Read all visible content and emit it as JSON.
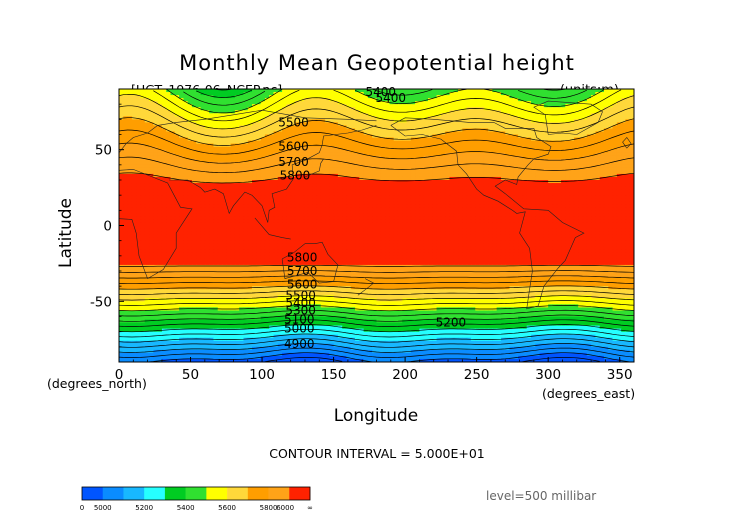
{
  "chart_data": {
    "type": "contour",
    "title": "Monthly Mean Geopotential height",
    "file_label": "[HGT_1976-06_NCEP.nc]",
    "units_label": "(units:m)",
    "xlabel": "Longitude",
    "ylabel": "Latitude",
    "x_units": "(degrees_east)",
    "y_units": "(degrees_north)",
    "xlim": [
      0,
      360
    ],
    "ylim": [
      -90,
      90
    ],
    "x_ticks": [
      0,
      50,
      100,
      150,
      200,
      250,
      300,
      350
    ],
    "y_ticks": [
      50,
      0,
      -50
    ],
    "contour_interval_text": "CONTOUR INTERVAL = 5.000E+01",
    "level_text": "level=500 millibar",
    "contour_labels": [
      {
        "text": "5400",
        "x": 183,
        "y": 88
      },
      {
        "text": "5400",
        "x": 190,
        "y": 84
      },
      {
        "text": "5500",
        "x": 122,
        "y": 68
      },
      {
        "text": "5600",
        "x": 122,
        "y": 52
      },
      {
        "text": "5700",
        "x": 122,
        "y": 42
      },
      {
        "text": "5800",
        "x": 123,
        "y": 33
      },
      {
        "text": "5800",
        "x": 128,
        "y": -21
      },
      {
        "text": "5700",
        "x": 128,
        "y": -30
      },
      {
        "text": "5600",
        "x": 128,
        "y": -39
      },
      {
        "text": "5500",
        "x": 127,
        "y": -46
      },
      {
        "text": "5400",
        "x": 127,
        "y": -51
      },
      {
        "text": "5300",
        "x": 127,
        "y": -56
      },
      {
        "text": "5100",
        "x": 126,
        "y": -62
      },
      {
        "text": "5000",
        "x": 126,
        "y": -68
      },
      {
        "text": "5200",
        "x": 232,
        "y": -64
      },
      {
        "text": "4900",
        "x": 126,
        "y": -78
      }
    ],
    "colorbar": {
      "tick_labels": [
        "0",
        "5000",
        "5200",
        "5400",
        "5600",
        "5800",
        "6000",
        "∞"
      ],
      "colors": [
        "#0055ff",
        "#0a8cff",
        "#18b8ff",
        "#26ffff",
        "#00cc22",
        "#30e030",
        "#ffff00",
        "#ffd83a",
        "#ff9e00",
        "#ffa318",
        "#ff2200"
      ]
    }
  }
}
